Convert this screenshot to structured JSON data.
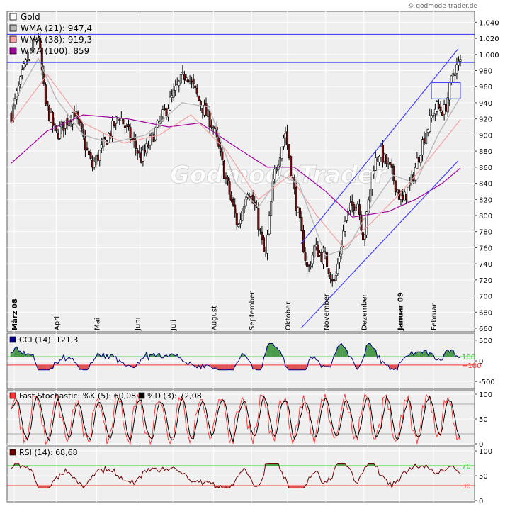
{
  "copyright": "© godmode-trader.de",
  "watermark": "GodmodeTrader",
  "colors": {
    "candle_up": "#ffffff",
    "candle_down": "#7a1010",
    "wma21": "#b8b8b8",
    "wma38": "#f4a0a0",
    "wma100": "#a000a0",
    "channel": "#4040ff",
    "hline": "#3030ff",
    "cci": "#000080",
    "cci_pos_fill": "#4a9a4a",
    "cci_neg_fill": "#e05050",
    "stoch_k": "#ff3030",
    "stoch_d": "#000000",
    "rsi": "#700000",
    "rsi_upper": "#30d030",
    "rsi_lower": "#ff3030"
  },
  "chart_data": [
    {
      "type": "candlestick",
      "legend": [
        {
          "label": "Gold",
          "color": "#ffffff"
        },
        {
          "label": "WMA (21): 947,4",
          "color": "#b8b8b8"
        },
        {
          "label": "WMA (38): 919,3",
          "color": "#f4a0a0"
        },
        {
          "label": "WMA (100): 859",
          "color": "#a000a0"
        }
      ],
      "y_ticks": [
        "660",
        "680",
        "700",
        "720",
        "740",
        "760",
        "780",
        "800",
        "820",
        "840",
        "860",
        "880",
        "900",
        "920",
        "940",
        "960",
        "980",
        "1.000",
        "1.020",
        "1.040"
      ],
      "ylim": [
        660,
        1050
      ],
      "months": [
        {
          "label": "März 08",
          "pos": 0.0,
          "bold": true
        },
        {
          "label": "April",
          "pos": 0.1
        },
        {
          "label": "Mai",
          "pos": 0.19
        },
        {
          "label": "Juni",
          "pos": 0.28
        },
        {
          "label": "Juli",
          "pos": 0.36
        },
        {
          "label": "August",
          "pos": 0.45
        },
        {
          "label": "September",
          "pos": 0.535
        },
        {
          "label": "Oktober",
          "pos": 0.615
        },
        {
          "label": "November",
          "pos": 0.7
        },
        {
          "label": "Dezember",
          "pos": 0.785
        },
        {
          "label": "Januar 09",
          "pos": 0.865,
          "bold": true
        },
        {
          "label": "Februar",
          "pos": 0.94
        }
      ],
      "horizontal_lines": [
        1025,
        990
      ],
      "anchors": [
        {
          "t": 0.0,
          "p": 925
        },
        {
          "t": 0.03,
          "p": 985
        },
        {
          "t": 0.06,
          "p": 1025
        },
        {
          "t": 0.075,
          "p": 940
        },
        {
          "t": 0.1,
          "p": 900
        },
        {
          "t": 0.14,
          "p": 930
        },
        {
          "t": 0.18,
          "p": 860
        },
        {
          "t": 0.24,
          "p": 925
        },
        {
          "t": 0.29,
          "p": 870
        },
        {
          "t": 0.33,
          "p": 915
        },
        {
          "t": 0.37,
          "p": 960
        },
        {
          "t": 0.39,
          "p": 978
        },
        {
          "t": 0.42,
          "p": 940
        },
        {
          "t": 0.45,
          "p": 910
        },
        {
          "t": 0.48,
          "p": 840
        },
        {
          "t": 0.505,
          "p": 785
        },
        {
          "t": 0.525,
          "p": 835
        },
        {
          "t": 0.545,
          "p": 805
        },
        {
          "t": 0.565,
          "p": 745
        },
        {
          "t": 0.585,
          "p": 850
        },
        {
          "t": 0.61,
          "p": 905
        },
        {
          "t": 0.63,
          "p": 830
        },
        {
          "t": 0.66,
          "p": 730
        },
        {
          "t": 0.675,
          "p": 760
        },
        {
          "t": 0.7,
          "p": 745
        },
        {
          "t": 0.72,
          "p": 715
        },
        {
          "t": 0.745,
          "p": 800
        },
        {
          "t": 0.77,
          "p": 820
        },
        {
          "t": 0.785,
          "p": 770
        },
        {
          "t": 0.805,
          "p": 860
        },
        {
          "t": 0.82,
          "p": 880
        },
        {
          "t": 0.845,
          "p": 855
        },
        {
          "t": 0.87,
          "p": 815
        },
        {
          "t": 0.89,
          "p": 840
        },
        {
          "t": 0.92,
          "p": 900
        },
        {
          "t": 0.945,
          "p": 935
        },
        {
          "t": 0.965,
          "p": 930
        },
        {
          "t": 0.985,
          "p": 980
        },
        {
          "t": 1.0,
          "p": 990
        }
      ],
      "wma21_anchors": [
        {
          "t": 0.0,
          "p": 935
        },
        {
          "t": 0.06,
          "p": 995
        },
        {
          "t": 0.1,
          "p": 945
        },
        {
          "t": 0.16,
          "p": 900
        },
        {
          "t": 0.22,
          "p": 890
        },
        {
          "t": 0.3,
          "p": 900
        },
        {
          "t": 0.38,
          "p": 940
        },
        {
          "t": 0.44,
          "p": 935
        },
        {
          "t": 0.5,
          "p": 840
        },
        {
          "t": 0.55,
          "p": 810
        },
        {
          "t": 0.6,
          "p": 850
        },
        {
          "t": 0.64,
          "p": 840
        },
        {
          "t": 0.7,
          "p": 750
        },
        {
          "t": 0.75,
          "p": 760
        },
        {
          "t": 0.8,
          "p": 810
        },
        {
          "t": 0.85,
          "p": 850
        },
        {
          "t": 0.9,
          "p": 840
        },
        {
          "t": 0.95,
          "p": 900
        },
        {
          "t": 1.0,
          "p": 947
        }
      ],
      "wma38_anchors": [
        {
          "t": 0.0,
          "p": 915
        },
        {
          "t": 0.08,
          "p": 975
        },
        {
          "t": 0.16,
          "p": 915
        },
        {
          "t": 0.25,
          "p": 890
        },
        {
          "t": 0.33,
          "p": 900
        },
        {
          "t": 0.4,
          "p": 925
        },
        {
          "t": 0.48,
          "p": 880
        },
        {
          "t": 0.55,
          "p": 820
        },
        {
          "t": 0.62,
          "p": 850
        },
        {
          "t": 0.68,
          "p": 800
        },
        {
          "t": 0.74,
          "p": 760
        },
        {
          "t": 0.8,
          "p": 790
        },
        {
          "t": 0.87,
          "p": 830
        },
        {
          "t": 0.93,
          "p": 870
        },
        {
          "t": 1.0,
          "p": 919
        }
      ],
      "wma100_anchors": [
        {
          "t": 0.0,
          "p": 865
        },
        {
          "t": 0.08,
          "p": 905
        },
        {
          "t": 0.16,
          "p": 925
        },
        {
          "t": 0.26,
          "p": 920
        },
        {
          "t": 0.35,
          "p": 910
        },
        {
          "t": 0.42,
          "p": 915
        },
        {
          "t": 0.5,
          "p": 885
        },
        {
          "t": 0.57,
          "p": 860
        },
        {
          "t": 0.63,
          "p": 860
        },
        {
          "t": 0.7,
          "p": 830
        },
        {
          "t": 0.76,
          "p": 798
        },
        {
          "t": 0.84,
          "p": 805
        },
        {
          "t": 0.9,
          "p": 820
        },
        {
          "t": 0.96,
          "p": 840
        },
        {
          "t": 1.0,
          "p": 859
        }
      ],
      "channel_lines": [
        {
          "t1": 0.645,
          "p1": 765,
          "t2": 0.995,
          "p2": 1007
        },
        {
          "t1": 0.645,
          "p1": 660,
          "t2": 0.995,
          "p2": 868
        }
      ],
      "highlight_box": {
        "t1": 0.945,
        "p1": 945,
        "t2": 1.0,
        "p2": 965
      }
    },
    {
      "type": "line",
      "name": "CCI (14): 121,3",
      "y_ticks": [
        "-500",
        "0",
        "500"
      ],
      "ylim": [
        -600,
        600
      ],
      "levels": [
        {
          "value": 100,
          "label": "100",
          "color": "#30d030"
        },
        {
          "value": -100,
          "label": "−100",
          "color": "#ff3030"
        }
      ]
    },
    {
      "type": "line",
      "name_k": "Fast Stochastic: %K (5): 60,08",
      "name_d": "%D (3): 72,08",
      "y_ticks": [
        "0",
        "50",
        "100"
      ],
      "ylim": [
        0,
        100
      ]
    },
    {
      "type": "line",
      "name": "RSI (14): 68,68",
      "y_ticks": [
        "0",
        "50",
        "100"
      ],
      "ylim": [
        0,
        100
      ],
      "levels": [
        {
          "value": 70,
          "label": "70",
          "color": "#30d030"
        },
        {
          "value": 30,
          "label": "30",
          "color": "#ff3030"
        }
      ]
    }
  ]
}
